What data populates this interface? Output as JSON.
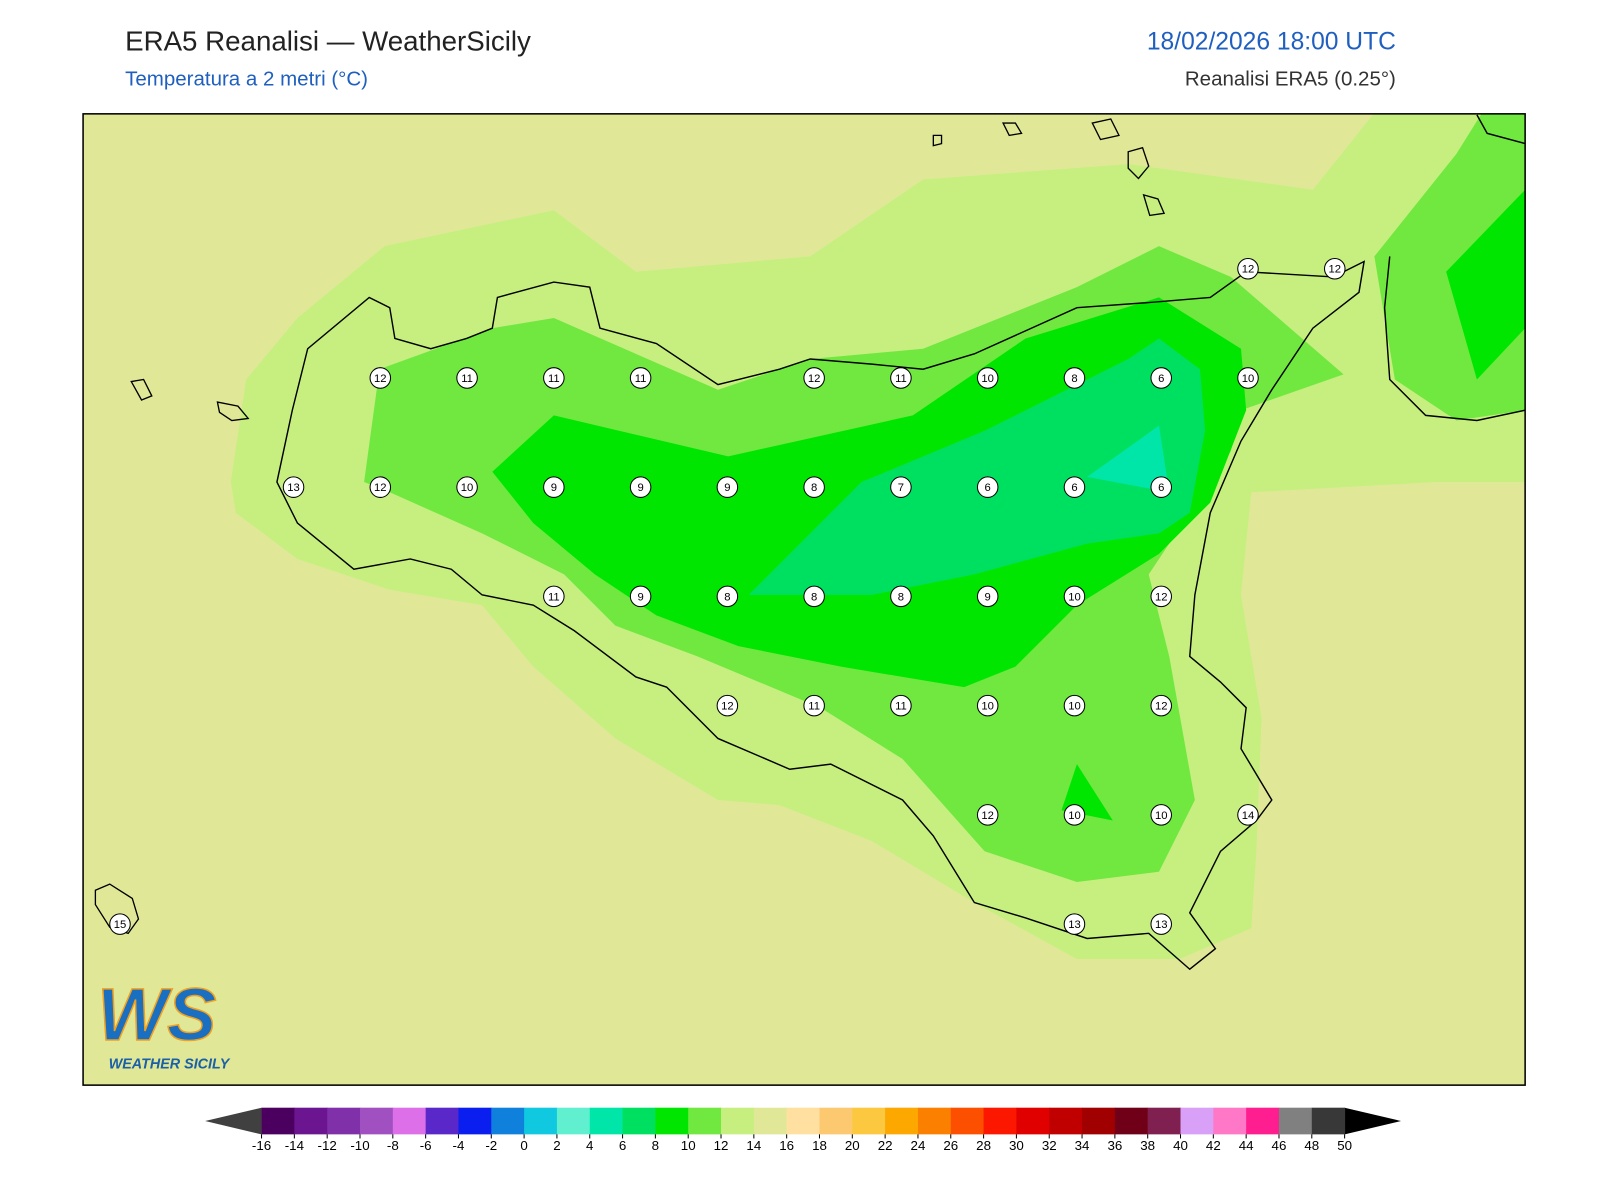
{
  "header": {
    "title": "ERA5 Reanalisi — WeatherSicily",
    "subtitle": "Temperatura a 2 metri (°C)",
    "datetime": "18/02/2026 18:00 UTC",
    "source": "Reanalisi ERA5 (0.25°)"
  },
  "logo": {
    "mark": "WS",
    "name": "WEATHER SICILY"
  },
  "stations": [
    [
      null,
      null,
      null,
      null,
      null,
      null,
      null,
      null,
      null,
      null,
      null,
      null,
      null,
      12,
      12
    ],
    [
      null,
      null,
      null,
      12,
      11,
      11,
      11,
      null,
      12,
      11,
      10,
      8,
      6,
      10,
      null
    ],
    [
      null,
      null,
      13,
      12,
      10,
      9,
      9,
      9,
      8,
      7,
      6,
      6,
      6,
      null,
      null
    ],
    [
      null,
      null,
      null,
      null,
      null,
      11,
      9,
      8,
      8,
      8,
      9,
      10,
      12,
      null,
      null
    ],
    [
      null,
      null,
      null,
      null,
      null,
      null,
      null,
      12,
      11,
      11,
      10,
      10,
      12,
      null,
      null
    ],
    [
      null,
      null,
      null,
      null,
      null,
      null,
      null,
      null,
      null,
      null,
      12,
      10,
      10,
      14,
      null
    ],
    [
      15,
      null,
      null,
      null,
      null,
      null,
      null,
      null,
      null,
      null,
      null,
      13,
      13,
      null,
      null
    ]
  ],
  "colorbar": {
    "ticks": [
      -16,
      -14,
      -12,
      -10,
      -8,
      -6,
      -4,
      -2,
      0,
      2,
      4,
      6,
      8,
      10,
      12,
      14,
      16,
      18,
      20,
      22,
      24,
      26,
      28,
      30,
      32,
      34,
      36,
      38,
      40,
      42,
      44,
      46,
      48,
      50
    ],
    "colors": [
      "#4b0060",
      "#6b1590",
      "#8030a8",
      "#a050c0",
      "#dd70e8",
      "#5a28c8",
      "#0a1ef0",
      "#1080dd",
      "#10c8e0",
      "#60f0d0",
      "#00e6a8",
      "#00e060",
      "#00e600",
      "#70e840",
      "#c6ef80",
      "#e0e898",
      "#ffe0a0",
      "#fcc870",
      "#fcc840",
      "#fca800",
      "#fc8000",
      "#fc5000",
      "#fc1800",
      "#e00000",
      "#c00000",
      "#a00000",
      "#700018",
      "#802050",
      "#d9a0f8",
      "#ff78c8",
      "#ff1e90",
      "#808080",
      "#383838"
    ],
    "under": "#404040",
    "over": "#000000"
  }
}
